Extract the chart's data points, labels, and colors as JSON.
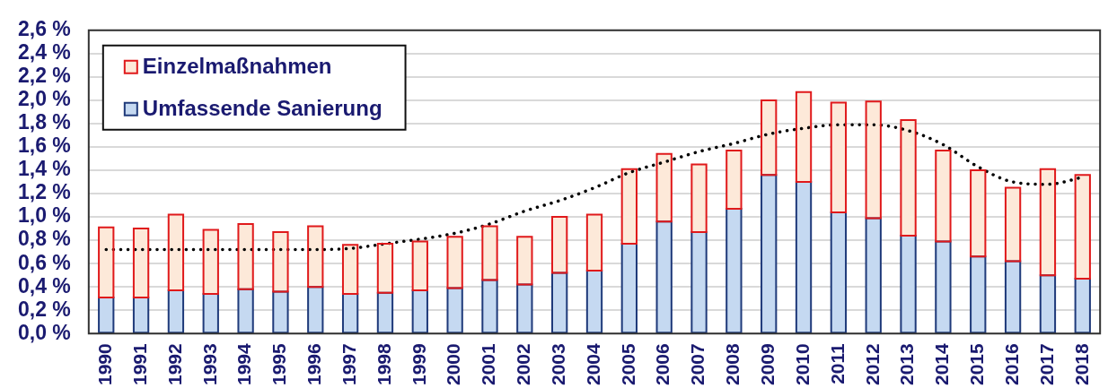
{
  "chart_data": {
    "type": "bar",
    "stacked": true,
    "categories": [
      "1990",
      "1991",
      "1992",
      "1993",
      "1994",
      "1995",
      "1996",
      "1997",
      "1998",
      "1999",
      "2000",
      "2001",
      "2002",
      "2003",
      "2004",
      "2005",
      "2006",
      "2007",
      "2008",
      "2009",
      "2010",
      "2011",
      "2012",
      "2013",
      "2014",
      "2015",
      "2016",
      "2017",
      "2018"
    ],
    "series": [
      {
        "name": "Umfassende Sanierung",
        "color": "#c5d9f1",
        "values": [
          0.31,
          0.31,
          0.37,
          0.34,
          0.38,
          0.36,
          0.4,
          0.34,
          0.35,
          0.37,
          0.39,
          0.46,
          0.42,
          0.52,
          0.54,
          0.77,
          0.96,
          0.87,
          1.07,
          1.36,
          1.3,
          1.04,
          0.99,
          0.84,
          0.79,
          0.66,
          0.62,
          0.5,
          0.47
        ]
      },
      {
        "name": "Einzelmaßnahmen",
        "color": "#fde9d9",
        "values": [
          0.6,
          0.59,
          0.65,
          0.55,
          0.56,
          0.51,
          0.52,
          0.42,
          0.42,
          0.42,
          0.44,
          0.46,
          0.41,
          0.48,
          0.48,
          0.64,
          0.58,
          0.58,
          0.5,
          0.64,
          0.77,
          0.94,
          1.0,
          0.99,
          0.78,
          0.74,
          0.63,
          0.91,
          0.89
        ]
      },
      {
        "type": "line",
        "color": "#000000",
        "values": [
          0.72,
          0.72,
          0.72,
          0.72,
          0.72,
          0.72,
          0.72,
          0.73,
          0.77,
          0.81,
          0.86,
          0.94,
          1.05,
          1.14,
          1.25,
          1.38,
          1.47,
          1.56,
          1.63,
          1.71,
          1.76,
          1.79,
          1.79,
          1.74,
          1.62,
          1.43,
          1.3,
          1.28,
          1.34
        ]
      }
    ],
    "ylim": [
      0,
      2.6
    ],
    "yticks": [
      {
        "value": 0,
        "label": "0,0 %"
      },
      {
        "value": 0.2,
        "label": "0,2 %"
      },
      {
        "value": 0.4,
        "label": "0,4 %"
      },
      {
        "value": 0.6,
        "label": "0,6 %"
      },
      {
        "value": 0.8,
        "label": "0,8 %"
      },
      {
        "value": 1.0,
        "label": "1,0 %"
      },
      {
        "value": 1.2,
        "label": "1,2 %"
      },
      {
        "value": 1.4,
        "label": "1,4 %"
      },
      {
        "value": 1.6,
        "label": "1,6 %"
      },
      {
        "value": 1.8,
        "label": "1,8 %"
      },
      {
        "value": 2.0,
        "label": "2,0 %"
      },
      {
        "value": 2.2,
        "label": "2,2 %"
      },
      {
        "value": 2.4,
        "label": "2,4 %"
      },
      {
        "value": 2.6,
        "label": "2,6 %"
      }
    ],
    "grid": "y",
    "legend": "top left",
    "line_style": "dotted",
    "marker": "none"
  }
}
